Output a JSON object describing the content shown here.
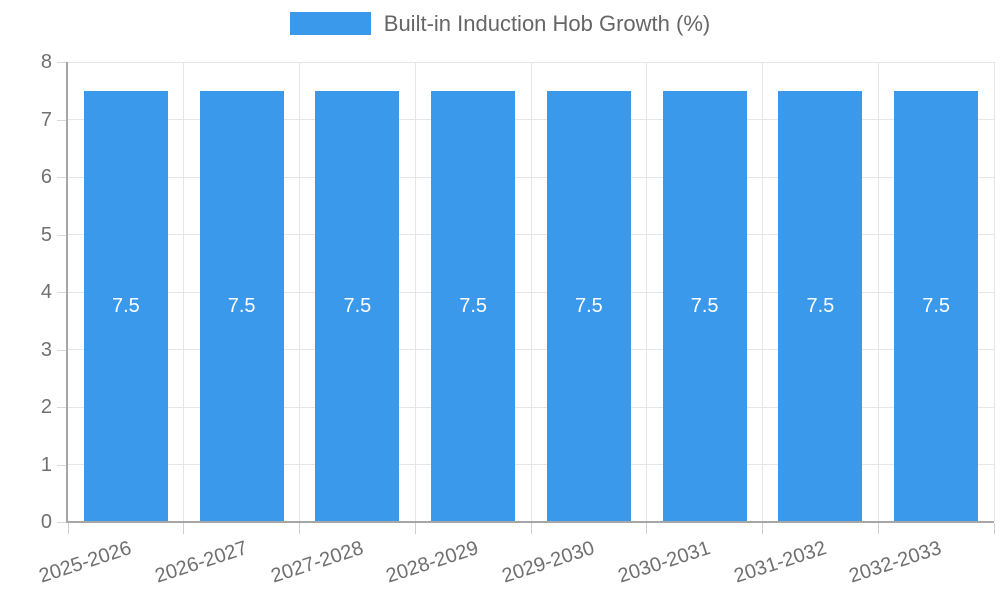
{
  "chart_data": {
    "type": "bar",
    "title": "Built-in Induction Hob Growth (%)",
    "categories": [
      "2025-2026",
      "2026-2027",
      "2027-2028",
      "2028-2029",
      "2029-2030",
      "2030-2031",
      "2031-2032",
      "2032-2033"
    ],
    "series": [
      {
        "name": "Built-in Induction Hob Growth (%)",
        "values": [
          7.5,
          7.5,
          7.5,
          7.5,
          7.5,
          7.5,
          7.5,
          7.5
        ]
      }
    ],
    "xlabel": "",
    "ylabel": "",
    "ylim": [
      0,
      8
    ],
    "yticks": [
      0,
      1,
      2,
      3,
      4,
      5,
      6,
      7,
      8
    ],
    "grid": true,
    "legend_position": "top",
    "bar_color": "#3b99ec",
    "value_label_color": "#ffffff",
    "axis_color": "#a6a6a6",
    "gridline_color": "#e6e6e6",
    "tick_text_color": "#707070",
    "legend_text_color": "#666666",
    "value_labels": [
      "7.5",
      "7.5",
      "7.5",
      "7.5",
      "7.5",
      "7.5",
      "7.5",
      "7.5"
    ]
  }
}
